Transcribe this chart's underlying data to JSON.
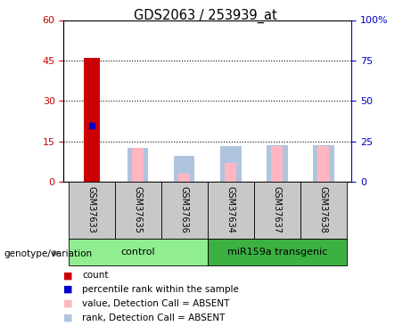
{
  "title": "GDS2063 / 253939_at",
  "samples": [
    "GSM37633",
    "GSM37635",
    "GSM37636",
    "GSM37634",
    "GSM37637",
    "GSM37638"
  ],
  "groups": [
    {
      "label": "control",
      "n": 3,
      "color": "#90EE90"
    },
    {
      "label": "miR159a transgenic",
      "n": 3,
      "color": "#3CB043"
    }
  ],
  "count_values": [
    46,
    0,
    0,
    0,
    0,
    0
  ],
  "percentile_values": [
    21,
    0,
    0,
    0,
    0,
    0
  ],
  "absent_value_heights_pct": [
    0,
    21,
    5,
    12,
    22,
    22
  ],
  "absent_rank_heights_pct": [
    0,
    21,
    16,
    22,
    23,
    23
  ],
  "ylim_left": [
    0,
    60
  ],
  "ylim_right": [
    0,
    100
  ],
  "yticks_left": [
    0,
    15,
    30,
    45,
    60
  ],
  "yticks_right": [
    0,
    25,
    50,
    75,
    100
  ],
  "ytick_labels_right": [
    "0",
    "25",
    "50",
    "75",
    "100%"
  ],
  "left_axis_color": "#CC0000",
  "right_axis_color": "#0000CC",
  "absent_value_color": "#FFB6C1",
  "absent_rank_color": "#B0C4DE",
  "count_color": "#CC0000",
  "percentile_color": "#0000CC",
  "label_area_color": "#C8C8C8",
  "legend_items": [
    {
      "label": "count",
      "color": "#CC0000"
    },
    {
      "label": "percentile rank within the sample",
      "color": "#0000CC"
    },
    {
      "label": "value, Detection Call = ABSENT",
      "color": "#FFB6C1"
    },
    {
      "label": "rank, Detection Call = ABSENT",
      "color": "#B0C4DE"
    }
  ],
  "genotype_label": "genotype/variation",
  "x_positions": [
    0,
    1,
    2,
    3,
    4,
    5
  ]
}
